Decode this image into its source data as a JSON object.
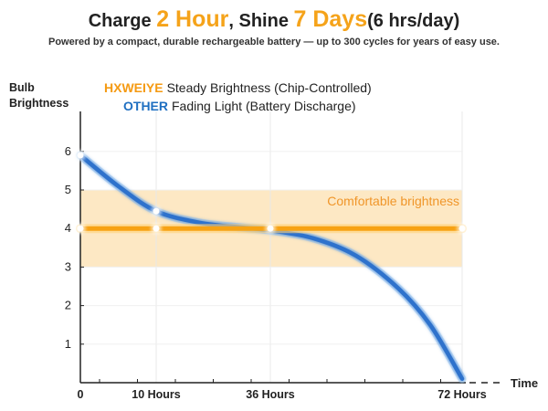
{
  "header": {
    "title_part1": "Charge ",
    "title_hi1": "2 Hour",
    "title_part2": ", Shine ",
    "title_hi2": "7 Days",
    "title_part3": "(6 hrs/day)",
    "subtitle": "Powered by a compact, durable rechargeable battery — up to 300 cycles for years of easy use."
  },
  "colors": {
    "accent": "#f5a31a",
    "steady_line": "#f7a213",
    "fading_line": "#2f72cc",
    "band_fill": "#fde8c4",
    "band_label": "#f0962a"
  },
  "chart_data": {
    "type": "line",
    "ylabel_line1": "Bulb",
    "ylabel_line2": "Brightness",
    "xlabel": "Time",
    "yticks": [
      "1",
      "2",
      "3",
      "4",
      "5",
      "6"
    ],
    "ylim": [
      0,
      6.5
    ],
    "xticks": [
      {
        "label": "0",
        "value": 0
      },
      {
        "label": "10 Hours",
        "value": 10
      },
      {
        "label": "36 Hours",
        "value": 36
      },
      {
        "label": "72 Hours",
        "value": 72
      }
    ],
    "band": {
      "from": 3,
      "to": 5,
      "label": "Comfortable brightness"
    },
    "series": [
      {
        "brand": "HXWEIYE",
        "name": "Steady Brightness (Chip-Controlled)",
        "x": [
          0,
          10,
          36,
          72
        ],
        "y": [
          4,
          4,
          4,
          4
        ]
      },
      {
        "brand": "OTHER",
        "name": "Fading Light (Battery Discharge)",
        "x": [
          0,
          5,
          10,
          20,
          30,
          36,
          44,
          52,
          60,
          66,
          72
        ],
        "y": [
          5.9,
          5.1,
          4.45,
          4.15,
          4.02,
          3.95,
          3.75,
          3.3,
          2.45,
          1.5,
          0.1
        ]
      }
    ]
  }
}
